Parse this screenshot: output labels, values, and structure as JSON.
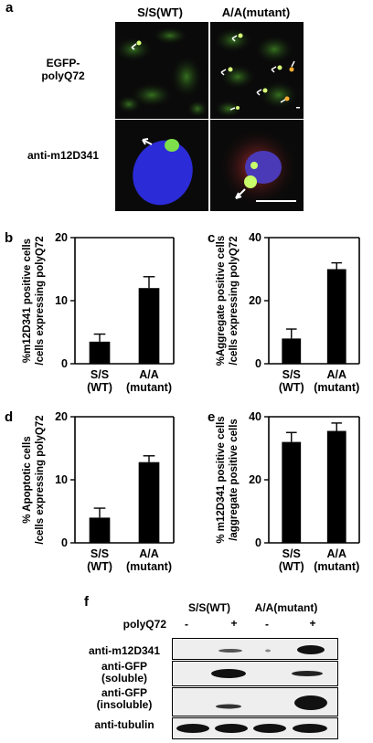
{
  "panel_a": {
    "label": "a",
    "col_headers": [
      "S/S(WT)",
      "A/A(mutant)"
    ],
    "row_labels": [
      "EGFP-\npolyQ72",
      "anti-m12D341"
    ]
  },
  "chart_data": [
    {
      "panel": "b",
      "type": "bar",
      "categories": [
        "S/S\n(WT)",
        "A/A\n(mutant)"
      ],
      "values": [
        3.5,
        12
      ],
      "errors": [
        1.2,
        1.8
      ],
      "ylabel": "%m12D341 positive cells\n/cells expressing polyQ72",
      "ylim": [
        0,
        20
      ],
      "yticks": [
        0,
        10,
        20
      ]
    },
    {
      "panel": "c",
      "type": "bar",
      "categories": [
        "S/S\n(WT)",
        "A/A\n(mutant)"
      ],
      "values": [
        8,
        30
      ],
      "errors": [
        3,
        2
      ],
      "ylabel": "%Aggregate positive cells\n/cells expressing polyQ72",
      "ylim": [
        0,
        40
      ],
      "yticks": [
        0,
        20,
        40
      ]
    },
    {
      "panel": "d",
      "type": "bar",
      "categories": [
        "S/S\n(WT)",
        "A/A\n(mutant)"
      ],
      "values": [
        4,
        12.8
      ],
      "errors": [
        1.5,
        1
      ],
      "ylabel": "% Apoptotic cells\n/cells expressing polyQ72",
      "ylim": [
        0,
        20
      ],
      "yticks": [
        0,
        10,
        20
      ]
    },
    {
      "panel": "e",
      "type": "bar",
      "categories": [
        "S/S\n(WT)",
        "A/A\n(mutant)"
      ],
      "values": [
        32,
        35.5
      ],
      "errors": [
        3,
        2.5
      ],
      "ylabel": "% m12D341 positive cells\n/aggregate positive cells",
      "ylim": [
        0,
        40
      ],
      "yticks": [
        0,
        20,
        40
      ]
    }
  ],
  "panel_f": {
    "label": "f",
    "group_headers": [
      "S/S(WT)",
      "A/A(mutant)"
    ],
    "treatment_label": "polyQ72",
    "lane_signs": [
      "-",
      "+",
      "-",
      "+"
    ],
    "rows": [
      "anti-m12D341",
      "anti-GFP\n(soluble)",
      "anti-GFP\n(insoluble)",
      "anti-tubulin"
    ]
  },
  "colors": {
    "bar": "#000000",
    "gfp": "#6fc23a",
    "nucleus": "#2b2bd8",
    "stain": "#c43030",
    "blot": "#eeeeee"
  }
}
